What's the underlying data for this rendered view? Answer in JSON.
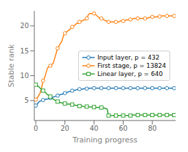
{
  "chart_data": {
    "type": "line",
    "title": "",
    "xlabel": "Training progress",
    "ylabel": "Stable rank",
    "xlim": [
      -1,
      96
    ],
    "ylim": [
      1,
      23
    ],
    "xticks": [
      0,
      20,
      40,
      60,
      80
    ],
    "yticks": [
      5,
      10,
      15,
      20
    ],
    "grid": false,
    "legend": "right",
    "x": [
      0,
      1,
      2,
      3,
      4,
      5,
      6,
      7,
      8,
      9,
      10,
      11,
      12,
      13,
      14,
      15,
      16,
      17,
      18,
      19,
      20,
      21,
      22,
      23,
      24,
      25,
      26,
      27,
      28,
      29,
      30,
      31,
      32,
      33,
      34,
      35,
      36,
      37,
      38,
      39,
      40,
      41,
      42,
      43,
      44,
      45,
      46,
      47,
      48,
      49,
      50,
      51,
      52,
      53,
      54,
      55,
      56,
      57,
      58,
      59,
      60,
      61,
      62,
      63,
      64,
      65,
      66,
      67,
      68,
      69,
      70,
      71,
      72,
      73,
      74,
      75,
      76,
      77,
      78,
      79,
      80,
      81,
      82,
      83,
      84,
      85,
      86,
      87,
      88,
      89,
      90,
      91,
      92,
      93,
      94,
      95
    ],
    "series": [
      {
        "name": "Input layer, p = 432",
        "color": "#1f77b4",
        "marker": "circle",
        "values": [
          4.0,
          4.3,
          4.7,
          4.9,
          5.0,
          5.1,
          5.2,
          5.3,
          5.3,
          5.4,
          5.5,
          5.6,
          5.7,
          5.8,
          5.9,
          6.0,
          6.1,
          6.2,
          6.3,
          6.4,
          6.5,
          6.6,
          6.7,
          6.8,
          6.9,
          7.0,
          7.1,
          7.1,
          7.2,
          7.2,
          7.3,
          7.3,
          7.3,
          7.4,
          7.4,
          7.4,
          7.4,
          7.5,
          7.5,
          7.5,
          7.5,
          7.5,
          7.5,
          7.5,
          7.5,
          7.5,
          7.5,
          7.5,
          7.5,
          7.5,
          7.5,
          7.5,
          7.5,
          7.5,
          7.5,
          7.5,
          7.5,
          7.5,
          7.5,
          7.5,
          7.5,
          7.5,
          7.5,
          7.5,
          7.5,
          7.5,
          7.5,
          7.5,
          7.5,
          7.5,
          7.5,
          7.5,
          7.5,
          7.5,
          7.5,
          7.5,
          7.5,
          7.5,
          7.5,
          7.5,
          7.5,
          7.5,
          7.5,
          7.5,
          7.5,
          7.5,
          7.5,
          7.5,
          7.5,
          7.5,
          7.5,
          7.5,
          7.5,
          7.5,
          7.5,
          7.5
        ]
      },
      {
        "name": "First stage, p = 13824",
        "color": "#ff7f0e",
        "marker": "circle",
        "values": [
          5.2,
          5.5,
          6.0,
          6.5,
          7.5,
          9.0,
          9.5,
          10.5,
          11.5,
          11.8,
          12.0,
          12.2,
          12.5,
          13.5,
          14.5,
          15.5,
          16.0,
          16.5,
          17.0,
          18.0,
          18.5,
          18.8,
          19.0,
          19.2,
          19.5,
          19.8,
          20.0,
          20.2,
          20.5,
          20.5,
          20.8,
          21.0,
          21.0,
          21.2,
          21.2,
          21.5,
          22.2,
          22.5,
          22.5,
          22.5,
          22.5,
          22.3,
          22.0,
          21.8,
          21.5,
          21.5,
          21.3,
          21.2,
          21.0,
          21.0,
          20.8,
          20.8,
          20.8,
          20.8,
          20.8,
          20.8,
          20.8,
          20.8,
          21.0,
          21.0,
          21.0,
          21.0,
          21.2,
          21.2,
          21.2,
          21.3,
          21.3,
          21.5,
          21.5,
          21.5,
          21.5,
          21.5,
          21.5,
          21.5,
          21.5,
          21.5,
          21.5,
          21.6,
          21.7,
          21.8,
          21.8,
          21.8,
          21.8,
          21.8,
          21.9,
          21.9,
          22.0,
          22.0,
          22.0,
          22.0,
          22.0,
          22.0,
          22.0,
          22.0,
          22.0,
          22.0
        ]
      },
      {
        "name": "Linear layer, p = 640",
        "color": "#2ca02c",
        "marker": "square",
        "values": [
          8.2,
          8.0,
          7.8,
          7.5,
          7.2,
          7.0,
          6.8,
          6.5,
          6.2,
          6.0,
          5.8,
          5.5,
          5.3,
          5.1,
          5.0,
          4.8,
          4.7,
          4.6,
          4.5,
          4.5,
          4.4,
          4.4,
          4.3,
          4.3,
          4.2,
          4.2,
          4.1,
          4.1,
          4.0,
          4.0,
          3.9,
          3.9,
          3.9,
          3.8,
          3.8,
          3.8,
          3.8,
          3.7,
          3.7,
          3.7,
          3.7,
          3.7,
          3.6,
          3.6,
          3.6,
          3.6,
          3.5,
          3.5,
          3.4,
          3.3,
          2.0,
          2.0,
          2.0,
          2.0,
          2.0,
          2.0,
          2.0,
          2.0,
          2.0,
          2.0,
          2.0,
          2.0,
          2.0,
          2.0,
          2.0,
          2.0,
          2.1,
          2.1,
          2.1,
          2.1,
          2.1,
          2.1,
          2.1,
          2.1,
          2.1,
          2.1,
          2.1,
          2.1,
          2.1,
          2.1,
          2.1,
          2.1,
          2.1,
          2.1,
          2.1,
          2.1,
          2.1,
          2.1,
          2.1,
          2.1,
          2.1,
          2.1,
          2.1,
          2.1,
          2.1,
          2.1
        ]
      }
    ]
  }
}
